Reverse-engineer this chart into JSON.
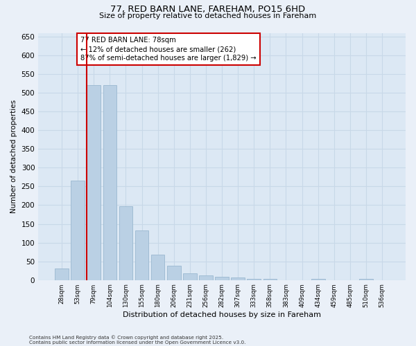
{
  "title1": "77, RED BARN LANE, FAREHAM, PO15 6HD",
  "title2": "Size of property relative to detached houses in Fareham",
  "xlabel": "Distribution of detached houses by size in Fareham",
  "ylabel": "Number of detached properties",
  "categories": [
    "28sqm",
    "53sqm",
    "79sqm",
    "104sqm",
    "130sqm",
    "155sqm",
    "180sqm",
    "206sqm",
    "231sqm",
    "256sqm",
    "282sqm",
    "307sqm",
    "333sqm",
    "358sqm",
    "383sqm",
    "409sqm",
    "434sqm",
    "459sqm",
    "485sqm",
    "510sqm",
    "536sqm"
  ],
  "values": [
    30,
    265,
    520,
    520,
    198,
    132,
    67,
    38,
    18,
    13,
    8,
    7,
    4,
    3,
    0,
    0,
    4,
    0,
    0,
    4,
    0
  ],
  "bar_color": "#bad0e4",
  "bar_edge_color": "#9ab8d0",
  "grid_color": "#c8d8e8",
  "background_color": "#dce8f4",
  "vline_color": "#cc0000",
  "annotation_line1": "77 RED BARN LANE: 78sqm",
  "annotation_line2": "← 12% of detached houses are smaller (262)",
  "annotation_line3": "87% of semi-detached houses are larger (1,829) →",
  "annotation_box_color": "#cc0000",
  "footer1": "Contains HM Land Registry data © Crown copyright and database right 2025.",
  "footer2": "Contains public sector information licensed under the Open Government Licence v3.0.",
  "ylim": [
    0,
    660
  ],
  "yticks": [
    0,
    50,
    100,
    150,
    200,
    250,
    300,
    350,
    400,
    450,
    500,
    550,
    600,
    650
  ],
  "fig_bg": "#eaf0f8"
}
